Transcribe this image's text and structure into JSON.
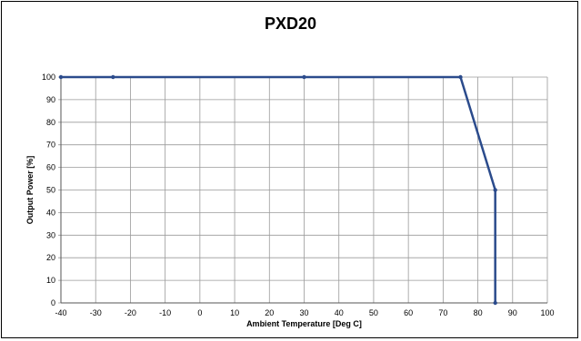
{
  "chart_data": {
    "type": "line",
    "title": "PXD20",
    "xlabel": "Ambient Temperature [Deg C]",
    "ylabel": "Output Power [%]",
    "xlim": [
      -40,
      100
    ],
    "ylim": [
      0,
      100
    ],
    "xticks": [
      -40,
      -30,
      -20,
      -10,
      0,
      10,
      20,
      30,
      40,
      50,
      60,
      70,
      80,
      90,
      100
    ],
    "yticks": [
      0,
      10,
      20,
      30,
      40,
      50,
      60,
      70,
      80,
      90,
      100
    ],
    "grid": true,
    "series": [
      {
        "x": [
          -40,
          -25,
          30,
          75,
          85,
          85
        ],
        "y": [
          100,
          100,
          100,
          100,
          50,
          0
        ]
      }
    ],
    "colors": {
      "line": "#2b4b8c",
      "grid": "#9a9a9a",
      "axis": "#555555"
    }
  }
}
